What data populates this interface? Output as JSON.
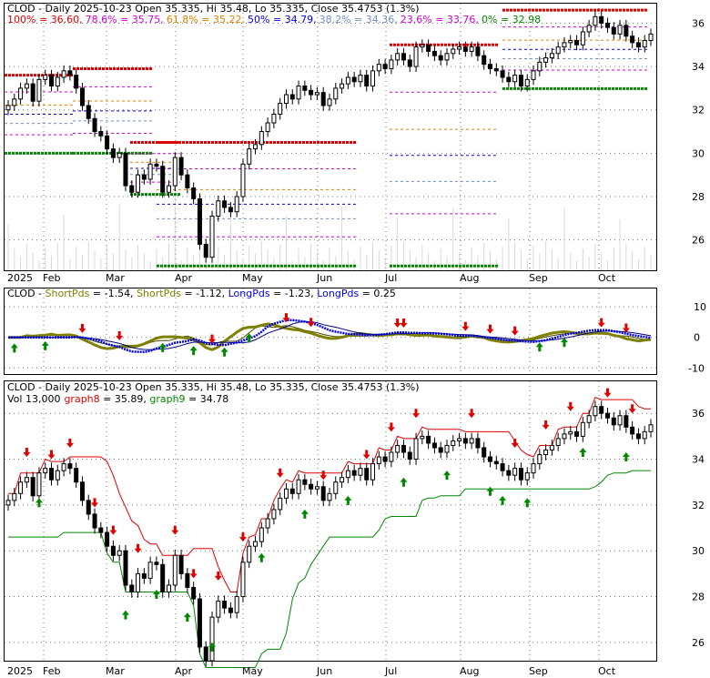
{
  "colors": {
    "red": "#e00000",
    "magenta": "#d000d0",
    "orange": "#e08000",
    "blue": "#0000e0",
    "steel": "#7090c0",
    "green": "#008800",
    "olive": "#808000",
    "gray": "#888888"
  },
  "panel1": {
    "title": "CLOD - Daily 2025-10-23 Open 35.335, Hi 35.48, Lo 35.335, Close 35.4753 (1.3%)",
    "fib_labels": [
      {
        "text": "100% = 36.60,",
        "color": "red"
      },
      {
        "text": "78.6% = 35.75,",
        "color": "magenta"
      },
      {
        "text": "61.8% = 35.22,",
        "color": "orange"
      },
      {
        "text": "50% = 34.79,",
        "color": "blue"
      },
      {
        "text": "38.2% = 34.36,",
        "color": "steel"
      },
      {
        "text": "23.6% = 33.76,",
        "color": "magenta"
      },
      {
        "text": "0% = 32.98",
        "color": "green"
      }
    ]
  },
  "panel2": {
    "title": "CLOD - ",
    "legend": [
      {
        "text": "ShortPds",
        "color": "olive"
      },
      {
        "text": " = -1.54, ",
        "color": "black"
      },
      {
        "text": "ShortPds",
        "color": "olive"
      },
      {
        "text": " = -1.12, ",
        "color": "black"
      },
      {
        "text": "LongPds",
        "color": "blue"
      },
      {
        "text": " = -1.23, ",
        "color": "black"
      },
      {
        "text": "LongPds",
        "color": "blue"
      },
      {
        "text": " = 0.25",
        "color": "black"
      }
    ]
  },
  "panel3": {
    "title": "CLOD - Daily 2025-10-23 Open 35.335, Hi 35.48, Lo 35.335, Close 35.4753 (1.3%)",
    "vol_text": "Vol 13,000",
    "graph8_label": "graph8",
    "graph8_value": " = 35.89, ",
    "graph9_label": "graph9",
    "graph9_value": " = 34.78"
  },
  "chart_data": [
    {
      "type": "candlestick",
      "title": "CLOD - Daily 2025-10-23 Open 35.335, Hi 35.48, Lo 35.335, Close 35.4753 (1.3%)",
      "x_ticks": [
        "2025",
        "Feb",
        "Mar",
        "Apr",
        "May",
        "Jun",
        "Jul",
        "Aug",
        "Sep",
        "Oct"
      ],
      "y_ticks": [
        26,
        28,
        30,
        32,
        34,
        36
      ],
      "ylim": [
        24.6,
        36.9
      ],
      "fib_levels": [
        {
          "label": "100%",
          "value": 36.6
        },
        {
          "label": "78.6%",
          "value": 35.75
        },
        {
          "label": "61.8%",
          "value": 35.22
        },
        {
          "label": "50%",
          "value": 34.79
        },
        {
          "label": "38.2%",
          "value": 34.36
        },
        {
          "label": "23.6%",
          "value": 33.76
        },
        {
          "label": "0%",
          "value": 32.98
        }
      ],
      "close_approx": [
        32.2,
        32.5,
        33.0,
        33.2,
        32.4,
        33.4,
        33.6,
        33.1,
        33.5,
        33.8,
        33.6,
        33.0,
        32.2,
        31.6,
        31.0,
        30.8,
        30.2,
        29.8,
        30.0,
        28.5,
        28.2,
        29.0,
        28.8,
        29.5,
        29.4,
        28.2,
        28.5,
        29.8,
        29.0,
        28.4,
        27.9,
        25.8,
        25.2,
        27.1,
        27.8,
        27.5,
        27.3,
        28.0,
        29.5,
        30.2,
        30.4,
        31.0,
        31.4,
        31.8,
        32.3,
        32.7,
        32.5,
        33.1,
        32.9,
        32.7,
        32.8,
        32.2,
        32.5,
        33.0,
        33.2,
        33.5,
        33.3,
        33.6,
        33.1,
        33.8,
        34.1,
        33.9,
        34.3,
        34.6,
        34.3,
        34.0,
        34.9,
        35.0,
        34.7,
        34.5,
        34.3,
        34.6,
        34.8,
        34.9,
        34.7,
        34.9,
        34.5,
        34.1,
        33.9,
        33.8,
        33.5,
        33.3,
        33.6,
        33.1,
        33.4,
        33.8,
        34.2,
        34.4,
        34.6,
        34.9,
        35.1,
        35.2,
        35.0,
        35.6,
        35.9,
        36.3,
        36.0,
        35.8,
        35.5,
        35.9,
        35.4,
        35.1,
        34.9,
        35.2,
        35.5
      ]
    },
    {
      "type": "line",
      "title": "CLOD - ShortPds / LongPds",
      "y_ticks": [
        -10,
        0,
        10
      ],
      "ylim": [
        -12,
        16
      ],
      "series": [
        {
          "name": "ShortPds",
          "value": -1.54
        },
        {
          "name": "ShortPds",
          "value": -1.12
        },
        {
          "name": "LongPds",
          "value": -1.23
        },
        {
          "name": "LongPds",
          "value": 0.25
        }
      ]
    },
    {
      "type": "candlestick",
      "title": "CLOD - Daily 2025-10-23 Open 35.335, Hi 35.48, Lo 35.335, Close 35.4753 (1.3%)",
      "x_ticks": [
        "2025",
        "Feb",
        "Mar",
        "Apr",
        "May",
        "Jun",
        "Jul",
        "Aug",
        "Sep",
        "Oct"
      ],
      "y_ticks": [
        26,
        28,
        30,
        32,
        34,
        36
      ],
      "ylim": [
        25.2,
        37.4
      ],
      "series": [
        {
          "name": "graph8",
          "value": 35.89
        },
        {
          "name": "graph9",
          "value": 34.78
        }
      ],
      "volume": 13000
    }
  ]
}
